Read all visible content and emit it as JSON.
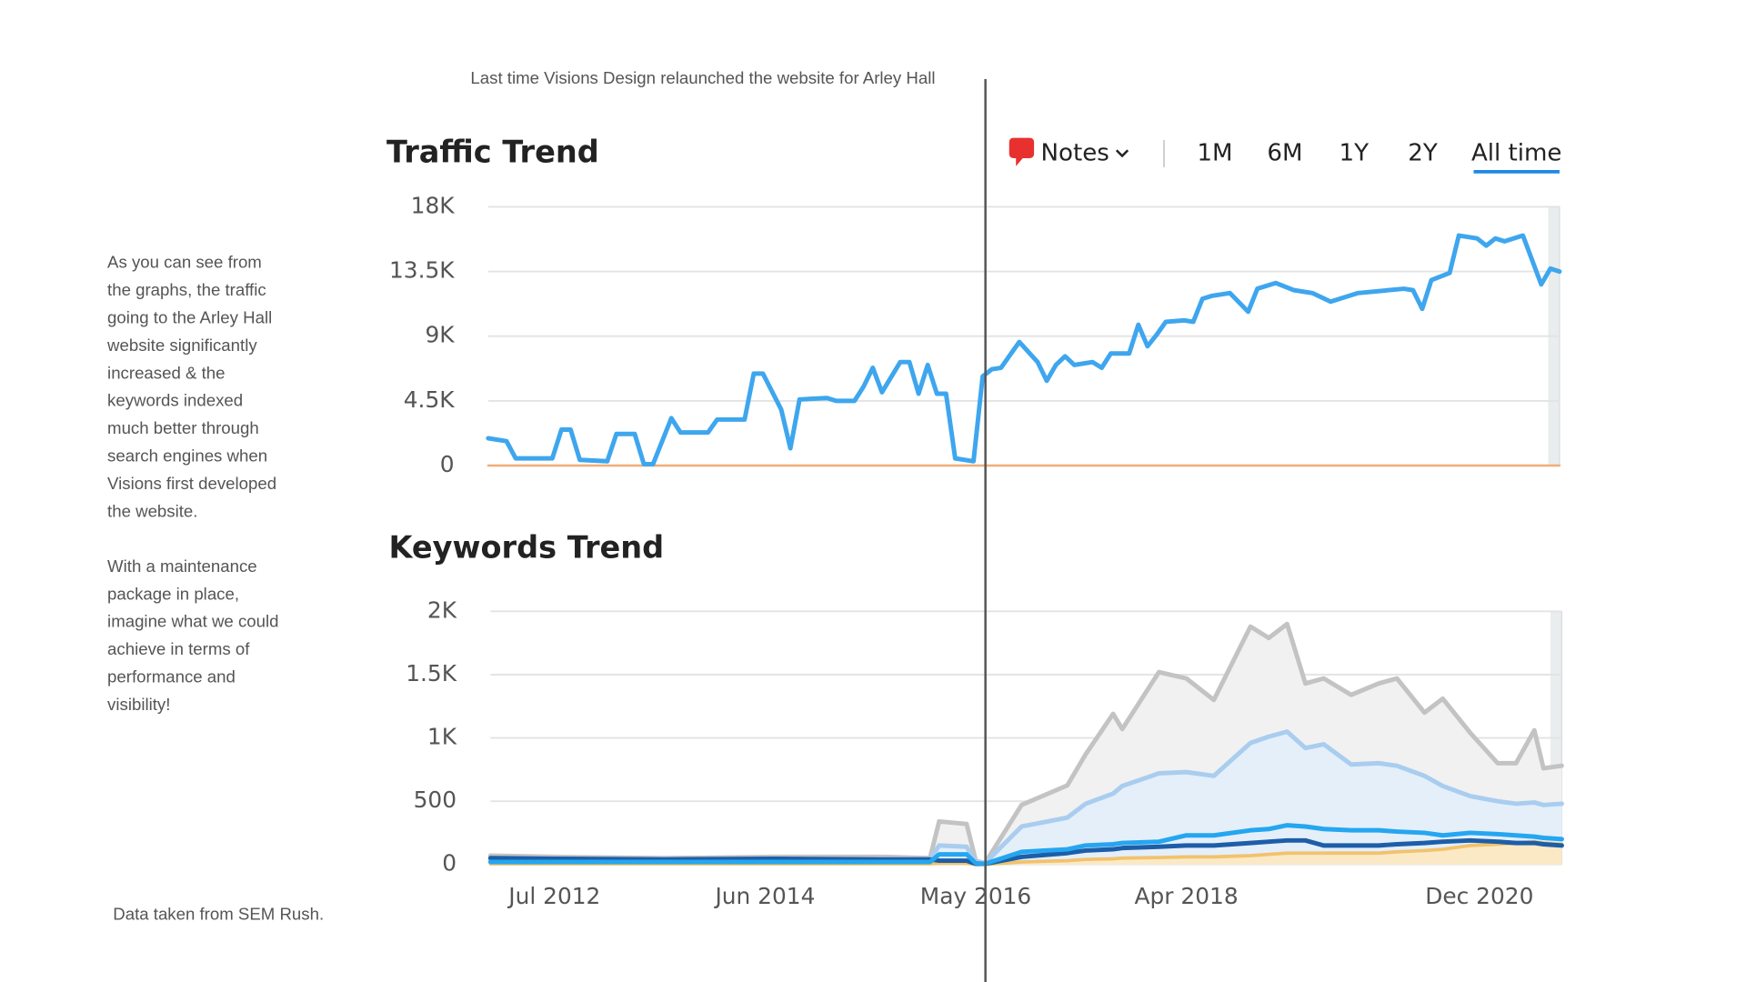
{
  "annotation": "Last time Visions Design relaunched the website for Arley Hall",
  "sidebar": [
    [
      "As you can see from",
      "the graphs, the traffic",
      "going to the Arley Hall",
      "website significantly",
      "increased & the",
      "keywords indexed",
      "much better through",
      "search engines when",
      "Visions first developed",
      "the website."
    ],
    [
      "With a maintenance",
      "package in place,",
      "imagine what we could",
      "achieve in terms of",
      "performance and",
      "visibility!"
    ]
  ],
  "source": "Data taken from SEM Rush.",
  "controls": {
    "notes": "Notes",
    "ranges": [
      "1M",
      "6M",
      "1Y",
      "2Y",
      "All time"
    ],
    "active": 4
  },
  "chart_data": [
    {
      "type": "line",
      "title": "Traffic Trend",
      "xlim": [
        "Dec 2011",
        "Sep 2021"
      ],
      "ylim": [
        0,
        18000
      ],
      "yticks": [
        0,
        {
          "value": 4500,
          "label": "4.5K"
        },
        {
          "value": 9000,
          "label": "9K"
        },
        {
          "value": 13500,
          "label": "13.5K"
        },
        {
          "value": 18000,
          "label": "18K"
        }
      ],
      "grid": true,
      "x": [
        "Dec 2011",
        "Feb 2012",
        "Mar 2012",
        "Jul 2012",
        "Aug 2012",
        "Sep 2012",
        "Oct 2012",
        "Jan 2013",
        "Feb 2013",
        "Apr 2013",
        "May 2013",
        "Jun 2013",
        "Aug 2013",
        "Sep 2013",
        "Dec 2013",
        "Jan 2014",
        "Apr 2014",
        "May 2014",
        "Jun 2014",
        "Aug 2014",
        "Sep 2014",
        "Oct 2014",
        "Jan 2015",
        "Feb 2015",
        "Apr 2015",
        "May 2015",
        "Jun 2015",
        "Jul 2015",
        "Sep 2015",
        "Oct 2015",
        "Nov 2015",
        "Dec 2015",
        "Jan 2016",
        "Feb 2016",
        "Mar 2016",
        "May 2016",
        "Jun 2016",
        "Jul 2016",
        "Aug 2016",
        "Oct 2016",
        "Dec 2016",
        "Jan 2017",
        "Feb 2017",
        "Mar 2017",
        "Apr 2017",
        "Jun 2017",
        "Jul 2017",
        "Aug 2017",
        "Oct 2017",
        "Nov 2017",
        "Dec 2017",
        "Jan 2018",
        "Feb 2018",
        "Apr 2018",
        "May 2018",
        "Jun 2018",
        "Jul 2018",
        "Sep 2018",
        "Nov 2018",
        "Dec 2018",
        "Feb 2019",
        "Apr 2019",
        "Jun 2019",
        "Aug 2019",
        "Nov 2019",
        "Apr 2020",
        "May 2020",
        "Jun 2020",
        "Jul 2020",
        "Sep 2020",
        "Oct 2020",
        "Dec 2020",
        "Jan 2021",
        "Feb 2021",
        "Mar 2021",
        "May 2021",
        "Jul 2021",
        "Aug 2021",
        "Sep 2021"
      ],
      "series": [
        {
          "color": "#f2ad76",
          "width": 2,
          "values": [
            0,
            0,
            0,
            0,
            0,
            0,
            0,
            0,
            0,
            0,
            0,
            0,
            0,
            0,
            0,
            0,
            0,
            0,
            0,
            0,
            0,
            0,
            0,
            0,
            0,
            0,
            0,
            0,
            0,
            0,
            0,
            0,
            0,
            0,
            0,
            0,
            0,
            0,
            0,
            0,
            0,
            0,
            0,
            0,
            0,
            0,
            0,
            0,
            0,
            0,
            0,
            0,
            0,
            0,
            0,
            0,
            0,
            0,
            0,
            0,
            0,
            0,
            0,
            0,
            0,
            0,
            0,
            0,
            0,
            0,
            0,
            0,
            0,
            0,
            0,
            0,
            0,
            0,
            0
          ]
        },
        {
          "color": "#3ea6ee",
          "width": 4,
          "values": [
            1900,
            1700,
            500,
            500,
            2500,
            2500,
            400,
            300,
            2200,
            2200,
            100,
            100,
            3300,
            2300,
            2300,
            3200,
            3200,
            6400,
            6400,
            3900,
            1200,
            4600,
            4700,
            4500,
            4500,
            5500,
            6800,
            5100,
            7200,
            7200,
            5000,
            7000,
            5000,
            5000,
            500,
            300,
            6200,
            6700,
            6800,
            8600,
            7200,
            5900,
            7000,
            7600,
            7000,
            7200,
            6800,
            7800,
            7800,
            9800,
            8300,
            9100,
            10000,
            10100,
            10000,
            11600,
            11800,
            12000,
            10700,
            12300,
            12700,
            12200,
            12000,
            11400,
            12000,
            12300,
            12200,
            10900,
            12900,
            13400,
            16000,
            15800,
            15300,
            15800,
            15600,
            16000,
            12600,
            13700,
            13500
          ]
        }
      ]
    },
    {
      "type": "area",
      "title": "Keywords Trend",
      "xlim": [
        "Dec 2011",
        "Sep 2021"
      ],
      "xticks": [
        "Jul 2012",
        "Jun 2014",
        "May 2016",
        "Apr 2018",
        "Dec 2020"
      ],
      "ylim": [
        0,
        2000
      ],
      "yticks": [
        0,
        500,
        {
          "value": 1000,
          "label": "1K"
        },
        {
          "value": 1500,
          "label": "1.5K"
        },
        {
          "value": 2000,
          "label": "2K"
        }
      ],
      "grid": true,
      "x": [
        "Dec 2011",
        "Jul 2012",
        "Jul 2013",
        "Jul 2014",
        "Jul 2015",
        "Dec 2015",
        "Jan 2016",
        "Apr 2016",
        "May 2016",
        "Jun 2016",
        "Oct 2016",
        "Mar 2017",
        "May 2017",
        "Aug 2017",
        "Sep 2017",
        "Jan 2018",
        "Apr 2018",
        "Jul 2018",
        "Nov 2018",
        "Jan 2019",
        "Mar 2019",
        "May 2019",
        "Jul 2019",
        "Oct 2019",
        "Jan 2020",
        "Mar 2020",
        "Jun 2020",
        "Aug 2020",
        "Nov 2020",
        "Feb 2021",
        "Apr 2021",
        "Jun 2021",
        "Jul 2021",
        "Sep 2021"
      ],
      "series": [
        {
          "color": "#c3c3c3",
          "fill": "#f1f1f1",
          "width": 4,
          "values": [
            70,
            60,
            50,
            60,
            60,
            50,
            340,
            320,
            30,
            10,
            470,
            625,
            870,
            1190,
            1070,
            1520,
            1470,
            1300,
            1880,
            1790,
            1900,
            1430,
            1470,
            1340,
            1430,
            1470,
            1200,
            1310,
            1040,
            800,
            800,
            1060,
            760,
            780
          ]
        },
        {
          "color": "#a9cdef",
          "fill": "#e5effa",
          "width": 4,
          "values": [
            40,
            40,
            40,
            40,
            40,
            40,
            150,
            140,
            20,
            10,
            300,
            370,
            480,
            560,
            620,
            720,
            730,
            700,
            960,
            1010,
            1050,
            920,
            950,
            790,
            800,
            780,
            700,
            620,
            540,
            500,
            480,
            490,
            470,
            480
          ]
        },
        {
          "color": "#f2c26c",
          "fill": "#fbe9c6",
          "width": 3,
          "values": [
            5,
            5,
            5,
            5,
            5,
            5,
            10,
            10,
            0,
            0,
            20,
            30,
            40,
            45,
            50,
            55,
            60,
            60,
            70,
            80,
            90,
            90,
            90,
            90,
            90,
            100,
            110,
            120,
            150,
            160,
            170,
            180,
            170,
            160
          ]
        },
        {
          "color": "#1d5ea8",
          "width": 4,
          "values": [
            50,
            45,
            40,
            45,
            40,
            40,
            30,
            30,
            5,
            5,
            60,
            90,
            110,
            120,
            130,
            140,
            150,
            150,
            170,
            180,
            190,
            190,
            150,
            150,
            150,
            160,
            170,
            180,
            190,
            180,
            170,
            170,
            160,
            150
          ]
        },
        {
          "color": "#25a6f0",
          "width": 4,
          "values": [
            20,
            20,
            20,
            20,
            20,
            20,
            80,
            80,
            10,
            5,
            100,
            120,
            150,
            160,
            170,
            180,
            230,
            230,
            270,
            280,
            310,
            300,
            280,
            270,
            270,
            260,
            250,
            230,
            250,
            240,
            230,
            220,
            210,
            200
          ]
        }
      ]
    }
  ]
}
